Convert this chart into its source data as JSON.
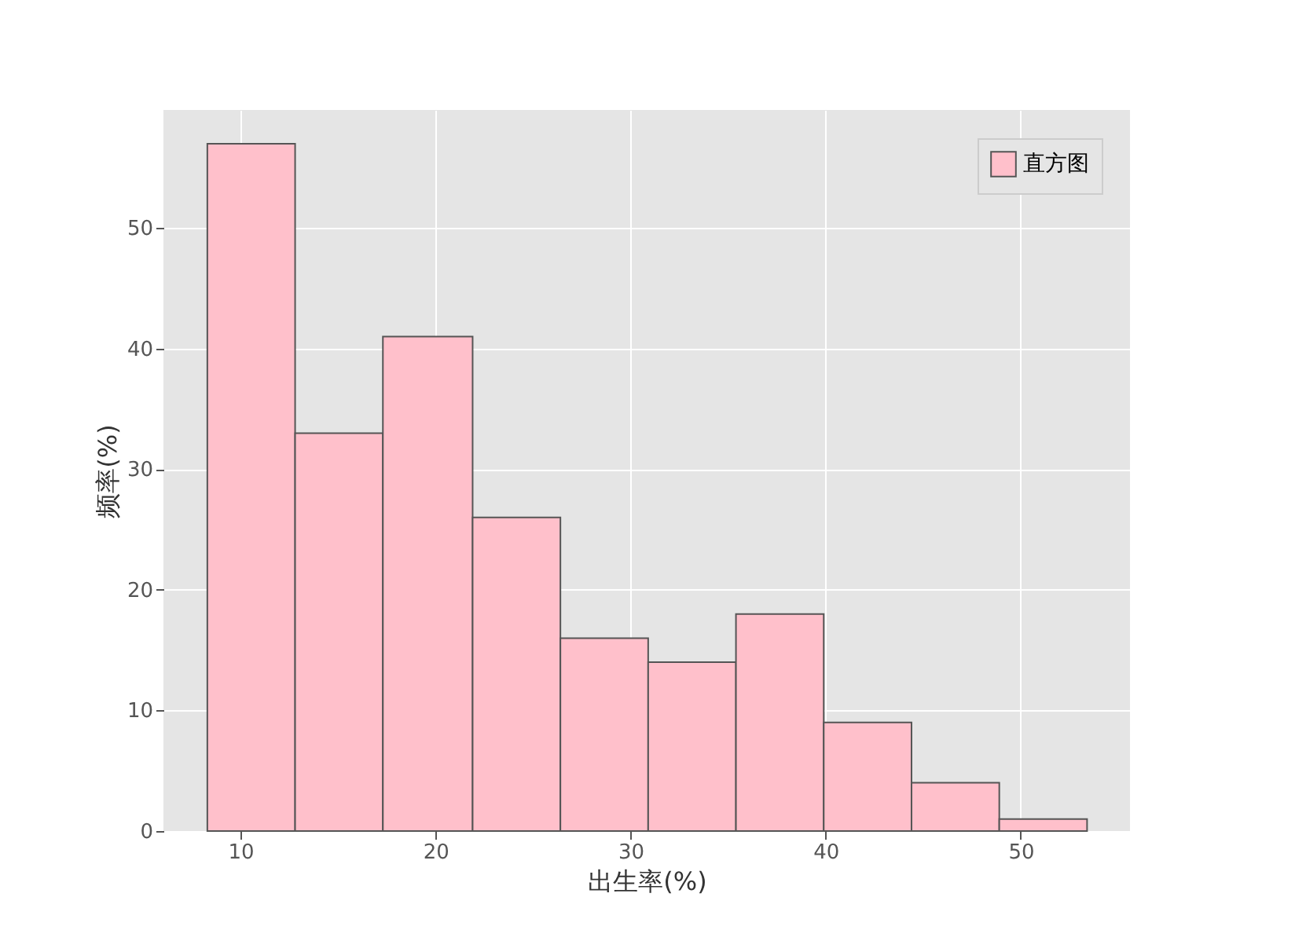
{
  "chart_data": {
    "type": "histogram",
    "xlabel": "出生率(%)",
    "ylabel": "频率(%)",
    "bins": [
      8.3,
      12.8,
      17.3,
      21.9,
      26.4,
      30.9,
      35.4,
      39.9,
      44.4,
      48.9,
      53.4
    ],
    "series": [
      {
        "name": "直方图",
        "color": "#ffc0cb",
        "values": [
          57,
          33,
          41,
          26,
          16,
          14,
          18,
          9,
          4,
          1
        ]
      }
    ],
    "xlim": [
      6.05,
      55.6
    ],
    "ylim": [
      0,
      59.8
    ],
    "xticks": [
      10,
      20,
      30,
      40,
      50
    ],
    "yticks": [
      0,
      10,
      20,
      30,
      40,
      50
    ],
    "grid": true,
    "legend": "top right"
  }
}
